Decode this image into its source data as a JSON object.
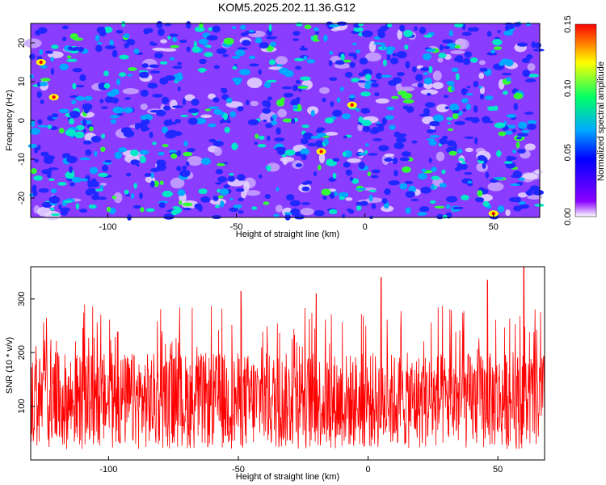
{
  "title": "KOM5.2025.202.11.36.G12",
  "chart_data": [
    {
      "type": "heatmap",
      "xlabel": "Height of straight line (km)",
      "ylabel": "Frequency (Hz)",
      "xlim": [
        -130,
        68
      ],
      "ylim": [
        -25,
        25
      ],
      "x_ticks": [
        -100,
        -50,
        0,
        50
      ],
      "x_tick_labels": [
        "-100",
        "-50",
        "0",
        "50"
      ],
      "y_ticks": [
        -20,
        -10,
        0,
        10,
        20
      ],
      "y_tick_labels": [
        "-20",
        "-10",
        "0",
        "10",
        "20"
      ],
      "colorbar": {
        "label": "Normalized spectral amplitude",
        "range": [
          0.0,
          0.15
        ],
        "ticks": [
          0.0,
          0.05,
          0.1,
          0.15
        ],
        "tick_labels": [
          "0.00",
          "0.05",
          "0.10",
          "0.15"
        ],
        "colormap": [
          "#ffffff",
          "#8a00ff",
          "#0000ff",
          "#00aaff",
          "#00ff66",
          "#ffff00",
          "#ff0000"
        ]
      },
      "peak_points": [
        {
          "x": -126,
          "y": 15,
          "value": 0.15
        },
        {
          "x": -121,
          "y": 6,
          "value": 0.15
        },
        {
          "x": -17,
          "y": -8,
          "value": 0.15
        },
        {
          "x": -5,
          "y": 4,
          "value": 0.13
        },
        {
          "x": 50,
          "y": -24,
          "value": 0.12
        }
      ]
    },
    {
      "type": "line",
      "xlabel": "Height of straight line (km)",
      "ylabel": "SNR (10 * v/v)",
      "xlim": [
        -130,
        68
      ],
      "ylim": [
        0,
        360
      ],
      "x_ticks": [
        -100,
        -50,
        0,
        50
      ],
      "x_tick_labels": [
        "-100",
        "-50",
        "0",
        "50"
      ],
      "y_ticks": [
        100,
        200,
        300
      ],
      "y_tick_labels": [
        "100",
        "200",
        "300"
      ],
      "series_color": "#ff0000",
      "typical_range": [
        20,
        200
      ],
      "peaks": [
        {
          "x": 5,
          "y": 340
        },
        {
          "x": 46,
          "y": 335
        },
        {
          "x": 60,
          "y": 360
        },
        {
          "x": -49,
          "y": 315
        },
        {
          "x": -20,
          "y": 310
        }
      ]
    }
  ]
}
